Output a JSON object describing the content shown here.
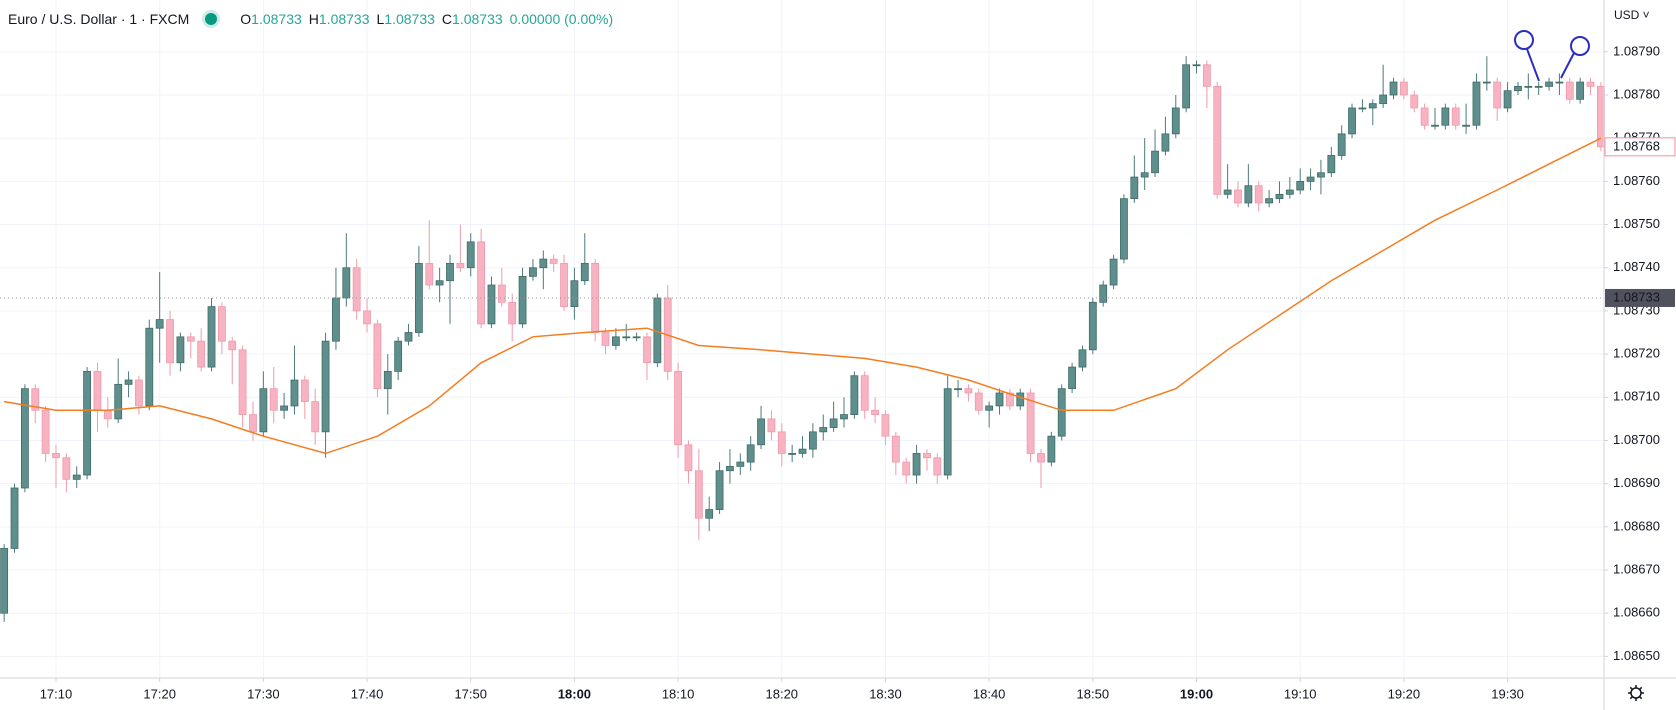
{
  "chart_data": {
    "type": "candlestick",
    "title": "Euro / U.S. Dollar · 1 · FXCM",
    "ohlc_legend": [
      {
        "label": "O",
        "value": 1.08733
      },
      {
        "label": "H",
        "value": 1.08733
      },
      {
        "label": "L",
        "value": 1.08733
      },
      {
        "label": "C",
        "value": 1.08733
      }
    ],
    "change": "0.00000 (0.00%)",
    "currency": "USD",
    "up_color": "#5f8f8c",
    "down_color": "#f7b3c1",
    "grid": true,
    "xlim": [
      1024.6,
      1179.3
    ],
    "xticks": [
      {
        "value": 1030,
        "label": "17:10"
      },
      {
        "value": 1040,
        "label": "17:20"
      },
      {
        "value": 1050,
        "label": "17:30"
      },
      {
        "value": 1060,
        "label": "17:40"
      },
      {
        "value": 1070,
        "label": "17:50"
      },
      {
        "value": 1080,
        "label": "18:00"
      },
      {
        "value": 1090,
        "label": "18:10"
      },
      {
        "value": 1100,
        "label": "18:20"
      },
      {
        "value": 1110,
        "label": "18:30"
      },
      {
        "value": 1120,
        "label": "18:40"
      },
      {
        "value": 1130,
        "label": "18:50"
      },
      {
        "value": 1140,
        "label": "19:00"
      },
      {
        "value": 1150,
        "label": "19:10"
      },
      {
        "value": 1160,
        "label": "19:20"
      },
      {
        "value": 1170,
        "label": "19:30"
      }
    ],
    "ylim": [
      1.08645,
      1.08802
    ],
    "yticks": [
      {
        "value": 1.0865,
        "label": "1.08650"
      },
      {
        "value": 1.0866,
        "label": "1.08660"
      },
      {
        "value": 1.0867,
        "label": "1.08670"
      },
      {
        "value": 1.0868,
        "label": "1.08680"
      },
      {
        "value": 1.0869,
        "label": "1.08690"
      },
      {
        "value": 1.087,
        "label": "1.08700"
      },
      {
        "value": 1.0871,
        "label": "1.08710"
      },
      {
        "value": 1.0872,
        "label": "1.08720"
      },
      {
        "value": 1.0873,
        "label": "1.08730"
      },
      {
        "value": 1.0874,
        "label": "1.08740"
      },
      {
        "value": 1.0875,
        "label": "1.08750"
      },
      {
        "value": 1.0876,
        "label": "1.08760"
      },
      {
        "value": 1.0877,
        "label": "1.08770"
      },
      {
        "value": 1.0878,
        "label": "1.08780"
      },
      {
        "value": 1.0879,
        "label": "1.08790"
      }
    ],
    "last_price": 1.08768,
    "last_price_color": "#f48fa3",
    "crosshair_price": 1.08733,
    "x": [
      1025,
      1026,
      1027,
      1028,
      1029,
      1030,
      1031,
      1032,
      1033,
      1034,
      1035,
      1036,
      1037,
      1038,
      1039,
      1040,
      1041,
      1042,
      1043,
      1044,
      1045,
      1046,
      1047,
      1048,
      1049,
      1050,
      1051,
      1052,
      1053,
      1054,
      1055,
      1056,
      1057,
      1058,
      1059,
      1060,
      1061,
      1062,
      1063,
      1064,
      1065,
      1066,
      1067,
      1068,
      1069,
      1070,
      1071,
      1072,
      1073,
      1074,
      1075,
      1076,
      1077,
      1078,
      1079,
      1080,
      1081,
      1082,
      1083,
      1084,
      1085,
      1086,
      1087,
      1088,
      1089,
      1090,
      1091,
      1092,
      1093,
      1094,
      1095,
      1096,
      1097,
      1098,
      1099,
      1100,
      1101,
      1102,
      1103,
      1104,
      1105,
      1106,
      1107,
      1108,
      1109,
      1110,
      1111,
      1112,
      1113,
      1114,
      1115,
      1116,
      1117,
      1118,
      1119,
      1120,
      1121,
      1122,
      1123,
      1124,
      1125,
      1126,
      1127,
      1128,
      1129,
      1130,
      1131,
      1132,
      1133,
      1134,
      1135,
      1136,
      1137,
      1138,
      1139,
      1140,
      1141,
      1142,
      1143,
      1144,
      1145,
      1146,
      1147,
      1148,
      1149,
      1150,
      1151,
      1152,
      1153,
      1154,
      1155,
      1156,
      1157,
      1158,
      1159,
      1160,
      1161,
      1162,
      1163,
      1164,
      1165,
      1166,
      1167,
      1168,
      1169,
      1170,
      1171,
      1172,
      1173,
      1174,
      1175,
      1176,
      1177,
      1178,
      1179
    ],
    "open": [
      1.0866,
      1.08675,
      1.08689,
      1.08712,
      1.08707,
      1.08697,
      1.08696,
      1.08691,
      1.08692,
      1.08716,
      1.08707,
      1.08705,
      1.08713,
      1.08714,
      1.08708,
      1.08726,
      1.08728,
      1.08718,
      1.08724,
      1.08723,
      1.08717,
      1.08731,
      1.08723,
      1.08721,
      1.08706,
      1.08702,
      1.08712,
      1.08707,
      1.08708,
      1.08714,
      1.08709,
      1.08702,
      1.08723,
      1.08733,
      1.0874,
      1.0873,
      1.08727,
      1.08712,
      1.08716,
      1.08723,
      1.08725,
      1.08741,
      1.08736,
      1.08737,
      1.08741,
      1.0874,
      1.08746,
      1.08727,
      1.08736,
      1.08732,
      1.08727,
      1.08738,
      1.0874,
      1.08742,
      1.08741,
      1.08731,
      1.08737,
      1.08741,
      1.08725,
      1.08722,
      1.08724,
      1.08724,
      1.08724,
      1.08718,
      1.08733,
      1.08716,
      1.08699,
      1.08693,
      1.08682,
      1.08684,
      1.08693,
      1.08694,
      1.08695,
      1.08699,
      1.08705,
      1.08702,
      1.08697,
      1.08697,
      1.08698,
      1.08702,
      1.08703,
      1.08705,
      1.08706,
      1.08715,
      1.08707,
      1.08706,
      1.08701,
      1.08695,
      1.08692,
      1.08697,
      1.08696,
      1.08692,
      1.08712,
      1.08712,
      1.08711,
      1.08707,
      1.08708,
      1.08711,
      1.08708,
      1.08711,
      1.08697,
      1.08695,
      1.08701,
      1.08712,
      1.08717,
      1.08721,
      1.08732,
      1.08736,
      1.08742,
      1.08756,
      1.08761,
      1.08762,
      1.08767,
      1.08771,
      1.08777,
      1.08787,
      1.08787,
      1.08782,
      1.08757,
      1.08758,
      1.08755,
      1.08759,
      1.08755,
      1.08756,
      1.08757,
      1.08758,
      1.0876,
      1.08761,
      1.08762,
      1.08766,
      1.08771,
      1.08777,
      1.08777,
      1.08778,
      1.0878,
      1.08783,
      1.0878,
      1.08777,
      1.08773,
      1.08773,
      1.08777,
      1.08773,
      1.08773,
      1.08783,
      1.08783,
      1.08777,
      1.08781,
      1.08782,
      1.08782,
      1.08782,
      1.08783,
      1.08783,
      1.08779,
      1.08783,
      1.08782
    ],
    "high": [
      1.08676,
      1.0869,
      1.08713,
      1.08713,
      1.08708,
      1.08699,
      1.08697,
      1.08694,
      1.08717,
      1.08718,
      1.0871,
      1.08719,
      1.08716,
      1.08715,
      1.08728,
      1.08739,
      1.0873,
      1.08725,
      1.08725,
      1.08726,
      1.08733,
      1.08732,
      1.08724,
      1.08722,
      1.08709,
      1.08716,
      1.08717,
      1.08711,
      1.08722,
      1.08715,
      1.08712,
      1.08725,
      1.0874,
      1.08748,
      1.08742,
      1.08733,
      1.08728,
      1.0872,
      1.08724,
      1.08727,
      1.08745,
      1.08751,
      1.0874,
      1.08743,
      1.0875,
      1.08748,
      1.08749,
      1.08738,
      1.0874,
      1.08734,
      1.0874,
      1.08742,
      1.08744,
      1.08743,
      1.08743,
      1.0874,
      1.08748,
      1.08742,
      1.08726,
      1.08726,
      1.08727,
      1.08725,
      1.08725,
      1.08734,
      1.08736,
      1.08718,
      1.087,
      1.08698,
      1.08687,
      1.08695,
      1.08698,
      1.08697,
      1.08701,
      1.08708,
      1.08707,
      1.08704,
      1.08699,
      1.08701,
      1.08704,
      1.08706,
      1.08709,
      1.0871,
      1.08716,
      1.08716,
      1.0871,
      1.08707,
      1.08702,
      1.08696,
      1.08699,
      1.08698,
      1.08697,
      1.08715,
      1.08714,
      1.08713,
      1.08712,
      1.08709,
      1.08712,
      1.08712,
      1.08712,
      1.08712,
      1.08698,
      1.08702,
      1.08713,
      1.08718,
      1.08722,
      1.08733,
      1.08737,
      1.08743,
      1.08757,
      1.08766,
      1.0877,
      1.08772,
      1.08775,
      1.0878,
      1.08789,
      1.08788,
      1.08788,
      1.08783,
      1.08764,
      1.0876,
      1.08764,
      1.0876,
      1.08758,
      1.0876,
      1.08761,
      1.08763,
      1.08763,
      1.08765,
      1.08768,
      1.08773,
      1.08778,
      1.08779,
      1.08779,
      1.08787,
      1.08784,
      1.08784,
      1.08781,
      1.08778,
      1.08777,
      1.08778,
      1.08778,
      1.08778,
      1.08785,
      1.08789,
      1.08784,
      1.08783,
      1.08783,
      1.08785,
      1.08783,
      1.08784,
      1.08785,
      1.08784,
      1.08784,
      1.08784,
      1.08783
    ],
    "low": [
      1.08658,
      1.08674,
      1.08688,
      1.08704,
      1.08695,
      1.08689,
      1.08688,
      1.08689,
      1.08691,
      1.08702,
      1.08703,
      1.08704,
      1.0871,
      1.08706,
      1.08707,
      1.08718,
      1.08715,
      1.08716,
      1.08719,
      1.08716,
      1.08716,
      1.0872,
      1.08713,
      1.08703,
      1.087,
      1.08701,
      1.08704,
      1.08705,
      1.08706,
      1.08705,
      1.08699,
      1.08696,
      1.08721,
      1.08731,
      1.08728,
      1.08725,
      1.0871,
      1.08706,
      1.08714,
      1.08722,
      1.08724,
      1.08735,
      1.08732,
      1.08727,
      1.08739,
      1.08738,
      1.08726,
      1.08726,
      1.08731,
      1.08723,
      1.08726,
      1.08737,
      1.08735,
      1.08739,
      1.0873,
      1.08728,
      1.08736,
      1.08723,
      1.0872,
      1.08721,
      1.08723,
      1.08723,
      1.08714,
      1.08717,
      1.08714,
      1.08696,
      1.0869,
      1.08677,
      1.08679,
      1.08683,
      1.0869,
      1.08692,
      1.08693,
      1.08698,
      1.087,
      1.08694,
      1.08695,
      1.08696,
      1.08696,
      1.087,
      1.08702,
      1.08703,
      1.08705,
      1.08705,
      1.08704,
      1.08699,
      1.08692,
      1.0869,
      1.0869,
      1.08693,
      1.0869,
      1.08691,
      1.0871,
      1.08709,
      1.08706,
      1.08703,
      1.08706,
      1.08707,
      1.08707,
      1.08695,
      1.08689,
      1.08694,
      1.087,
      1.08711,
      1.08716,
      1.0872,
      1.08731,
      1.08735,
      1.08741,
      1.08755,
      1.08758,
      1.08761,
      1.08766,
      1.0877,
      1.08776,
      1.08785,
      1.08777,
      1.08756,
      1.08756,
      1.08754,
      1.08754,
      1.08753,
      1.08754,
      1.08755,
      1.08756,
      1.08757,
      1.08758,
      1.08757,
      1.08761,
      1.08765,
      1.0877,
      1.08776,
      1.08773,
      1.08777,
      1.08779,
      1.08779,
      1.08776,
      1.08772,
      1.08772,
      1.08772,
      1.08772,
      1.08771,
      1.08772,
      1.08781,
      1.08774,
      1.08776,
      1.0878,
      1.08779,
      1.0878,
      1.08781,
      1.0878,
      1.08778,
      1.08778,
      1.0878,
      1.08767
    ],
    "close": [
      1.08675,
      1.08689,
      1.08712,
      1.08707,
      1.08697,
      1.08696,
      1.08691,
      1.08692,
      1.08716,
      1.08707,
      1.08705,
      1.08713,
      1.08714,
      1.08708,
      1.08726,
      1.08728,
      1.08718,
      1.08724,
      1.08723,
      1.08717,
      1.08731,
      1.08723,
      1.08721,
      1.08706,
      1.08702,
      1.08712,
      1.08707,
      1.08708,
      1.08714,
      1.08709,
      1.08702,
      1.08723,
      1.08733,
      1.0874,
      1.0873,
      1.08727,
      1.08712,
      1.08716,
      1.08723,
      1.08725,
      1.08741,
      1.08736,
      1.08737,
      1.08741,
      1.0874,
      1.08746,
      1.08727,
      1.08736,
      1.08732,
      1.08727,
      1.08738,
      1.0874,
      1.08742,
      1.08741,
      1.08731,
      1.08737,
      1.08741,
      1.08725,
      1.08722,
      1.08724,
      1.08724,
      1.08724,
      1.08718,
      1.08733,
      1.08716,
      1.08699,
      1.08693,
      1.08682,
      1.08684,
      1.08693,
      1.08694,
      1.08695,
      1.08699,
      1.08705,
      1.08702,
      1.08697,
      1.08697,
      1.08698,
      1.08702,
      1.08703,
      1.08705,
      1.08706,
      1.08715,
      1.08707,
      1.08706,
      1.08701,
      1.08695,
      1.08692,
      1.08697,
      1.08696,
      1.08692,
      1.08712,
      1.08712,
      1.08711,
      1.08707,
      1.08708,
      1.08711,
      1.08708,
      1.08711,
      1.08697,
      1.08695,
      1.08701,
      1.08712,
      1.08717,
      1.08721,
      1.08732,
      1.08736,
      1.08742,
      1.08756,
      1.08761,
      1.08762,
      1.08767,
      1.08771,
      1.08777,
      1.08787,
      1.08787,
      1.08782,
      1.08757,
      1.08758,
      1.08755,
      1.08759,
      1.08755,
      1.08756,
      1.08757,
      1.08758,
      1.0876,
      1.08761,
      1.08762,
      1.08766,
      1.08771,
      1.08777,
      1.08777,
      1.08778,
      1.0878,
      1.08783,
      1.0878,
      1.08777,
      1.08773,
      1.08773,
      1.08777,
      1.08773,
      1.08773,
      1.08783,
      1.08783,
      1.08777,
      1.08781,
      1.08782,
      1.08782,
      1.08782,
      1.08783,
      1.08783,
      1.08779,
      1.08783,
      1.08782,
      1.08768
    ],
    "moving_average": {
      "color": "#f57c1f",
      "x": [
        1025,
        1030,
        1035,
        1040,
        1045,
        1050,
        1056,
        1061,
        1066,
        1071,
        1076,
        1081,
        1087,
        1092,
        1098,
        1103,
        1108,
        1113,
        1118,
        1123,
        1127,
        1132,
        1138,
        1143,
        1148,
        1153,
        1158,
        1163,
        1169,
        1174,
        1179
      ],
      "values": [
        1.08709,
        1.08707,
        1.08707,
        1.08708,
        1.08705,
        1.08701,
        1.08697,
        1.08701,
        1.08708,
        1.08718,
        1.08724,
        1.08725,
        1.08726,
        1.08722,
        1.08721,
        1.0872,
        1.08719,
        1.08717,
        1.08714,
        1.0871,
        1.08707,
        1.08707,
        1.08712,
        1.08721,
        1.08729,
        1.08737,
        1.08744,
        1.08751,
        1.08758,
        1.08764,
        1.0877
      ]
    }
  }
}
